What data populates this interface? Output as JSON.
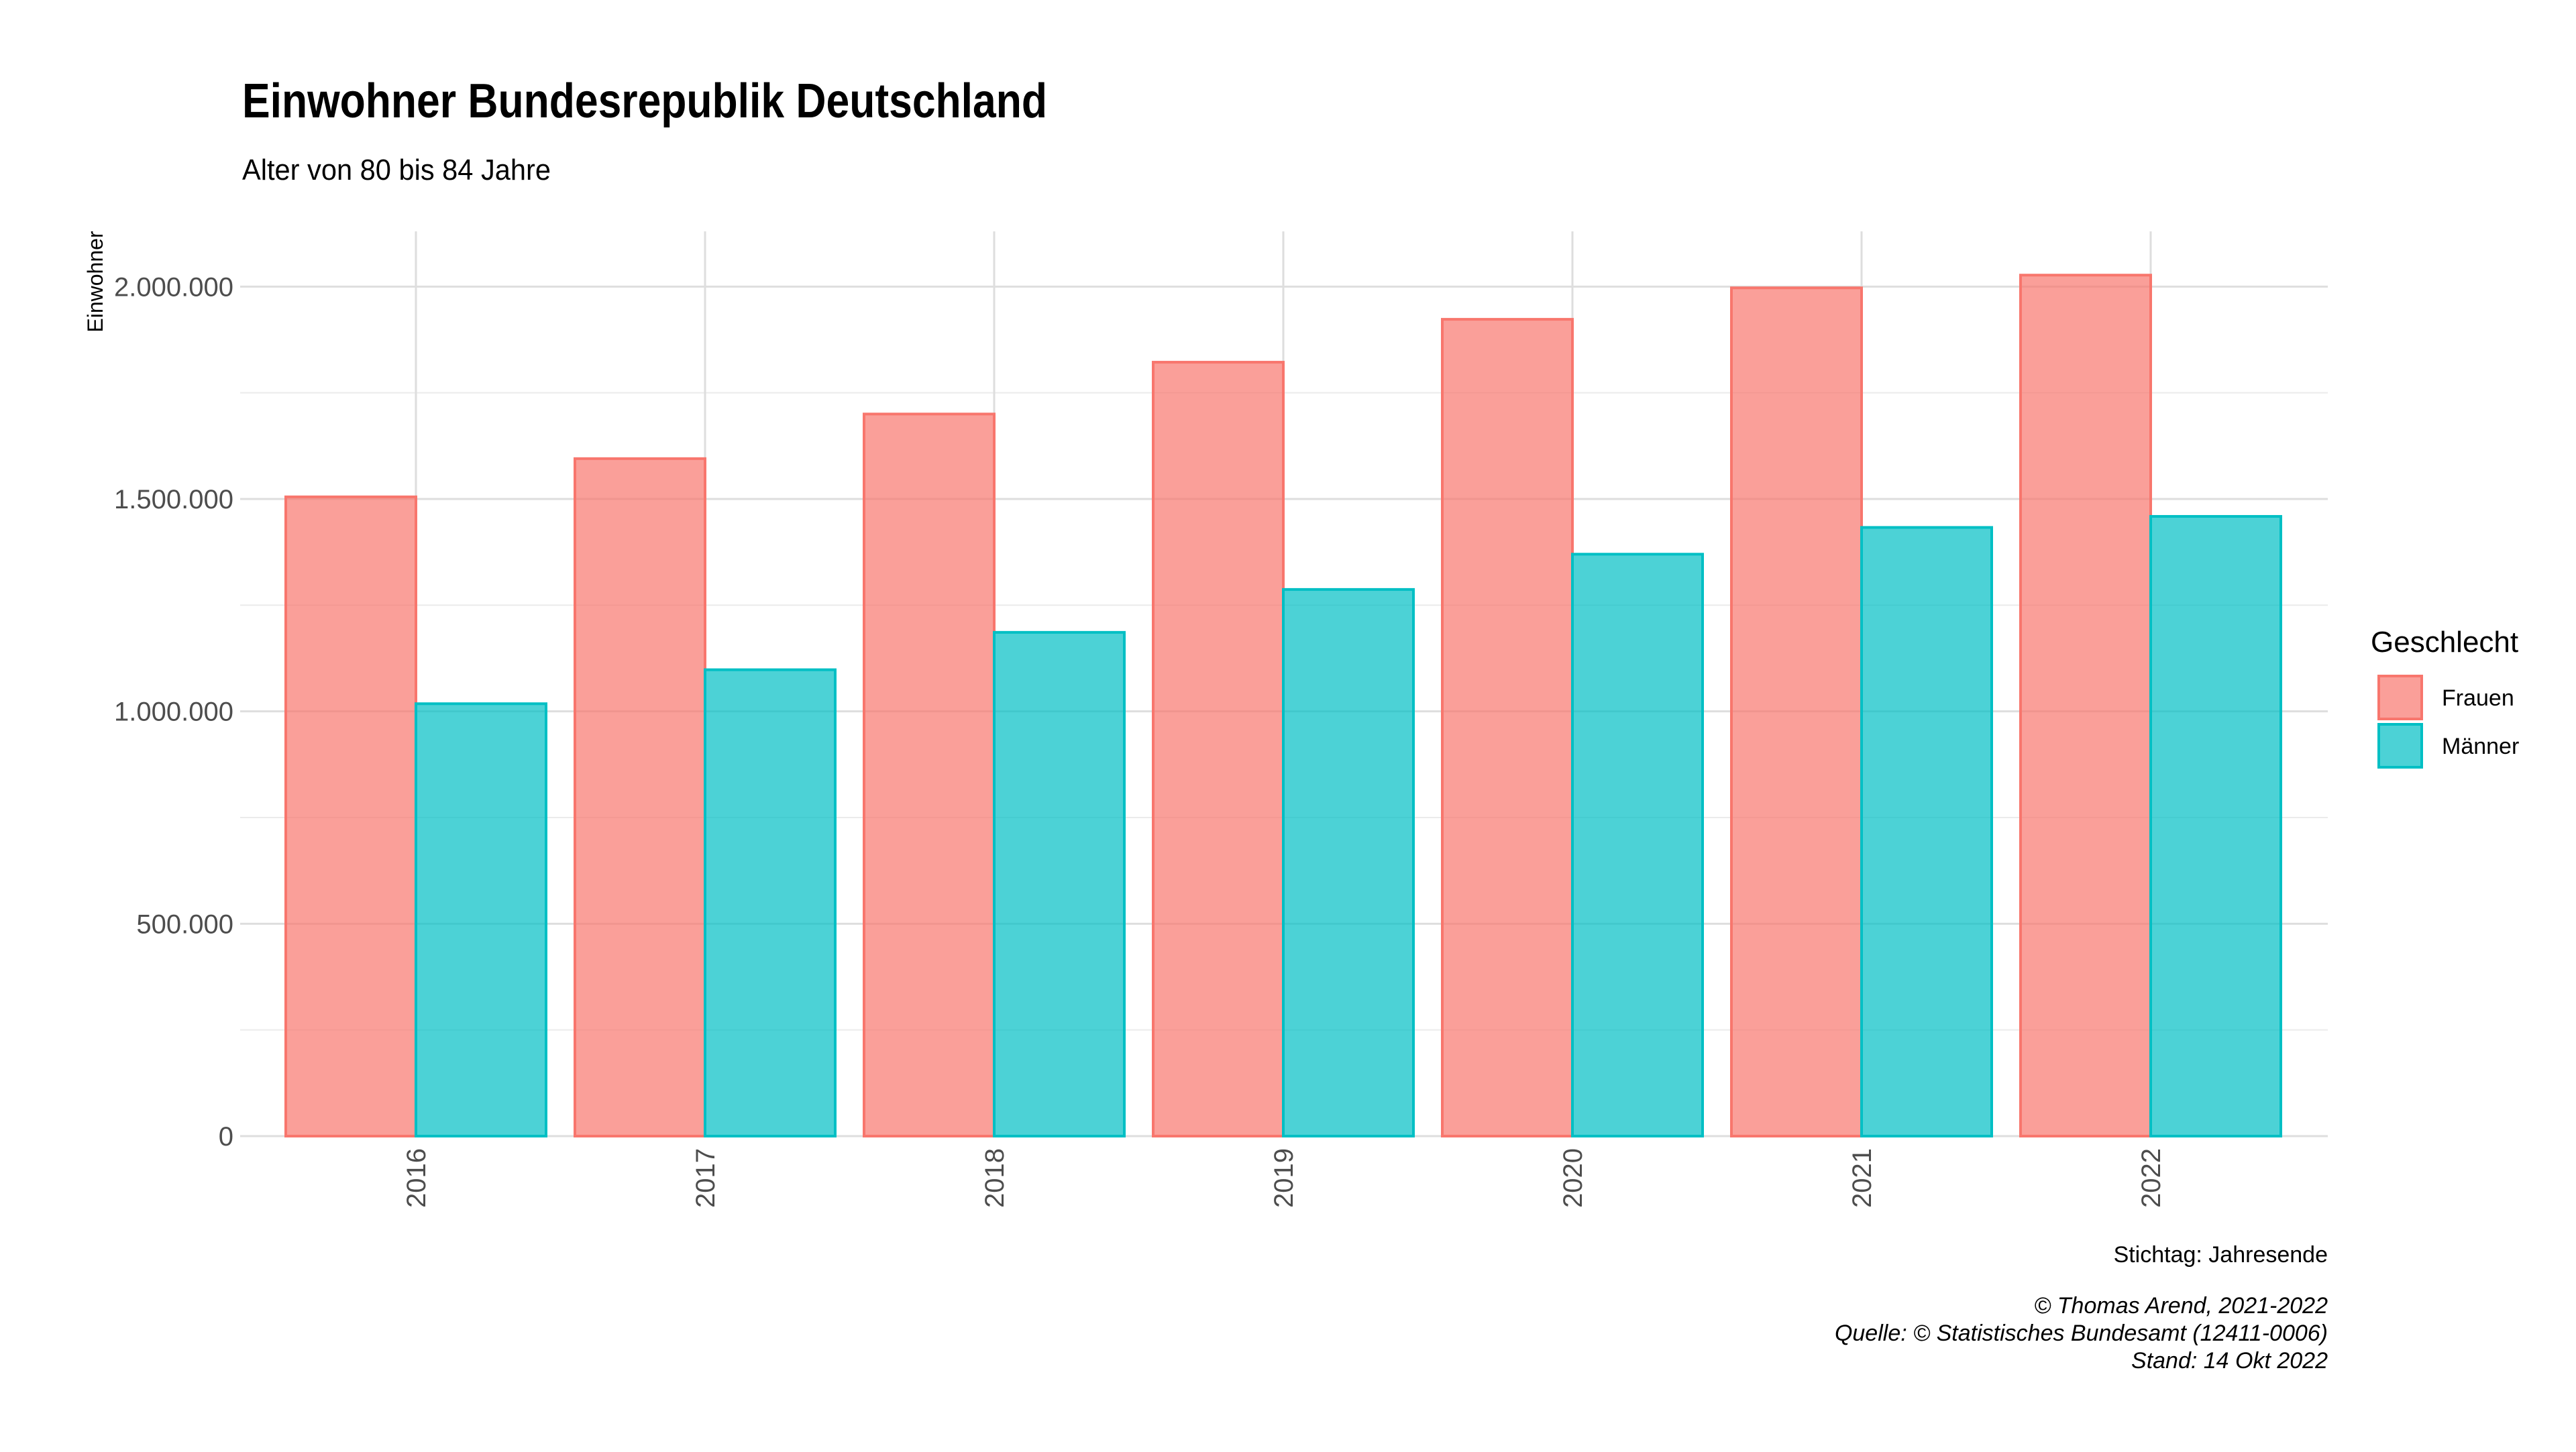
{
  "chart_data": {
    "type": "bar",
    "title": "Einwohner Bundesrepublik Deutschland",
    "subtitle": "Alter von 80 bis 84 Jahre",
    "ylabel": "Einwohner",
    "xlabel": "",
    "categories": [
      "2016",
      "2017",
      "2018",
      "2019",
      "2020",
      "2021",
      "2022"
    ],
    "series": [
      {
        "name": "Frauen",
        "color": "#F8766D",
        "values": [
          1505000,
          1595000,
          1700000,
          1822000,
          1923000,
          1997000,
          2027000
        ]
      },
      {
        "name": "Männer",
        "color": "#00BFC4",
        "values": [
          1018000,
          1098000,
          1186000,
          1287000,
          1370000,
          1433000,
          1459000
        ]
      }
    ],
    "ylim": [
      0,
      2130000
    ],
    "yticks": [
      0,
      500000,
      1000000,
      1500000,
      2000000
    ],
    "ytick_labels": [
      "0",
      "500.000",
      "1.000.000",
      "1.500.000",
      "2.000.000"
    ],
    "grid": true,
    "legend": {
      "title": "Geschlecht",
      "position": "right",
      "entries": [
        "Frauen",
        "Männer"
      ]
    },
    "annotations": {
      "x_note": "Stichtag: Jahresende",
      "caption": [
        "© Thomas Arend, 2021-2022",
        "Quelle: © Statistisches Bundesamt (12411-0006)",
        "Stand: 14 Okt 2022"
      ]
    }
  }
}
